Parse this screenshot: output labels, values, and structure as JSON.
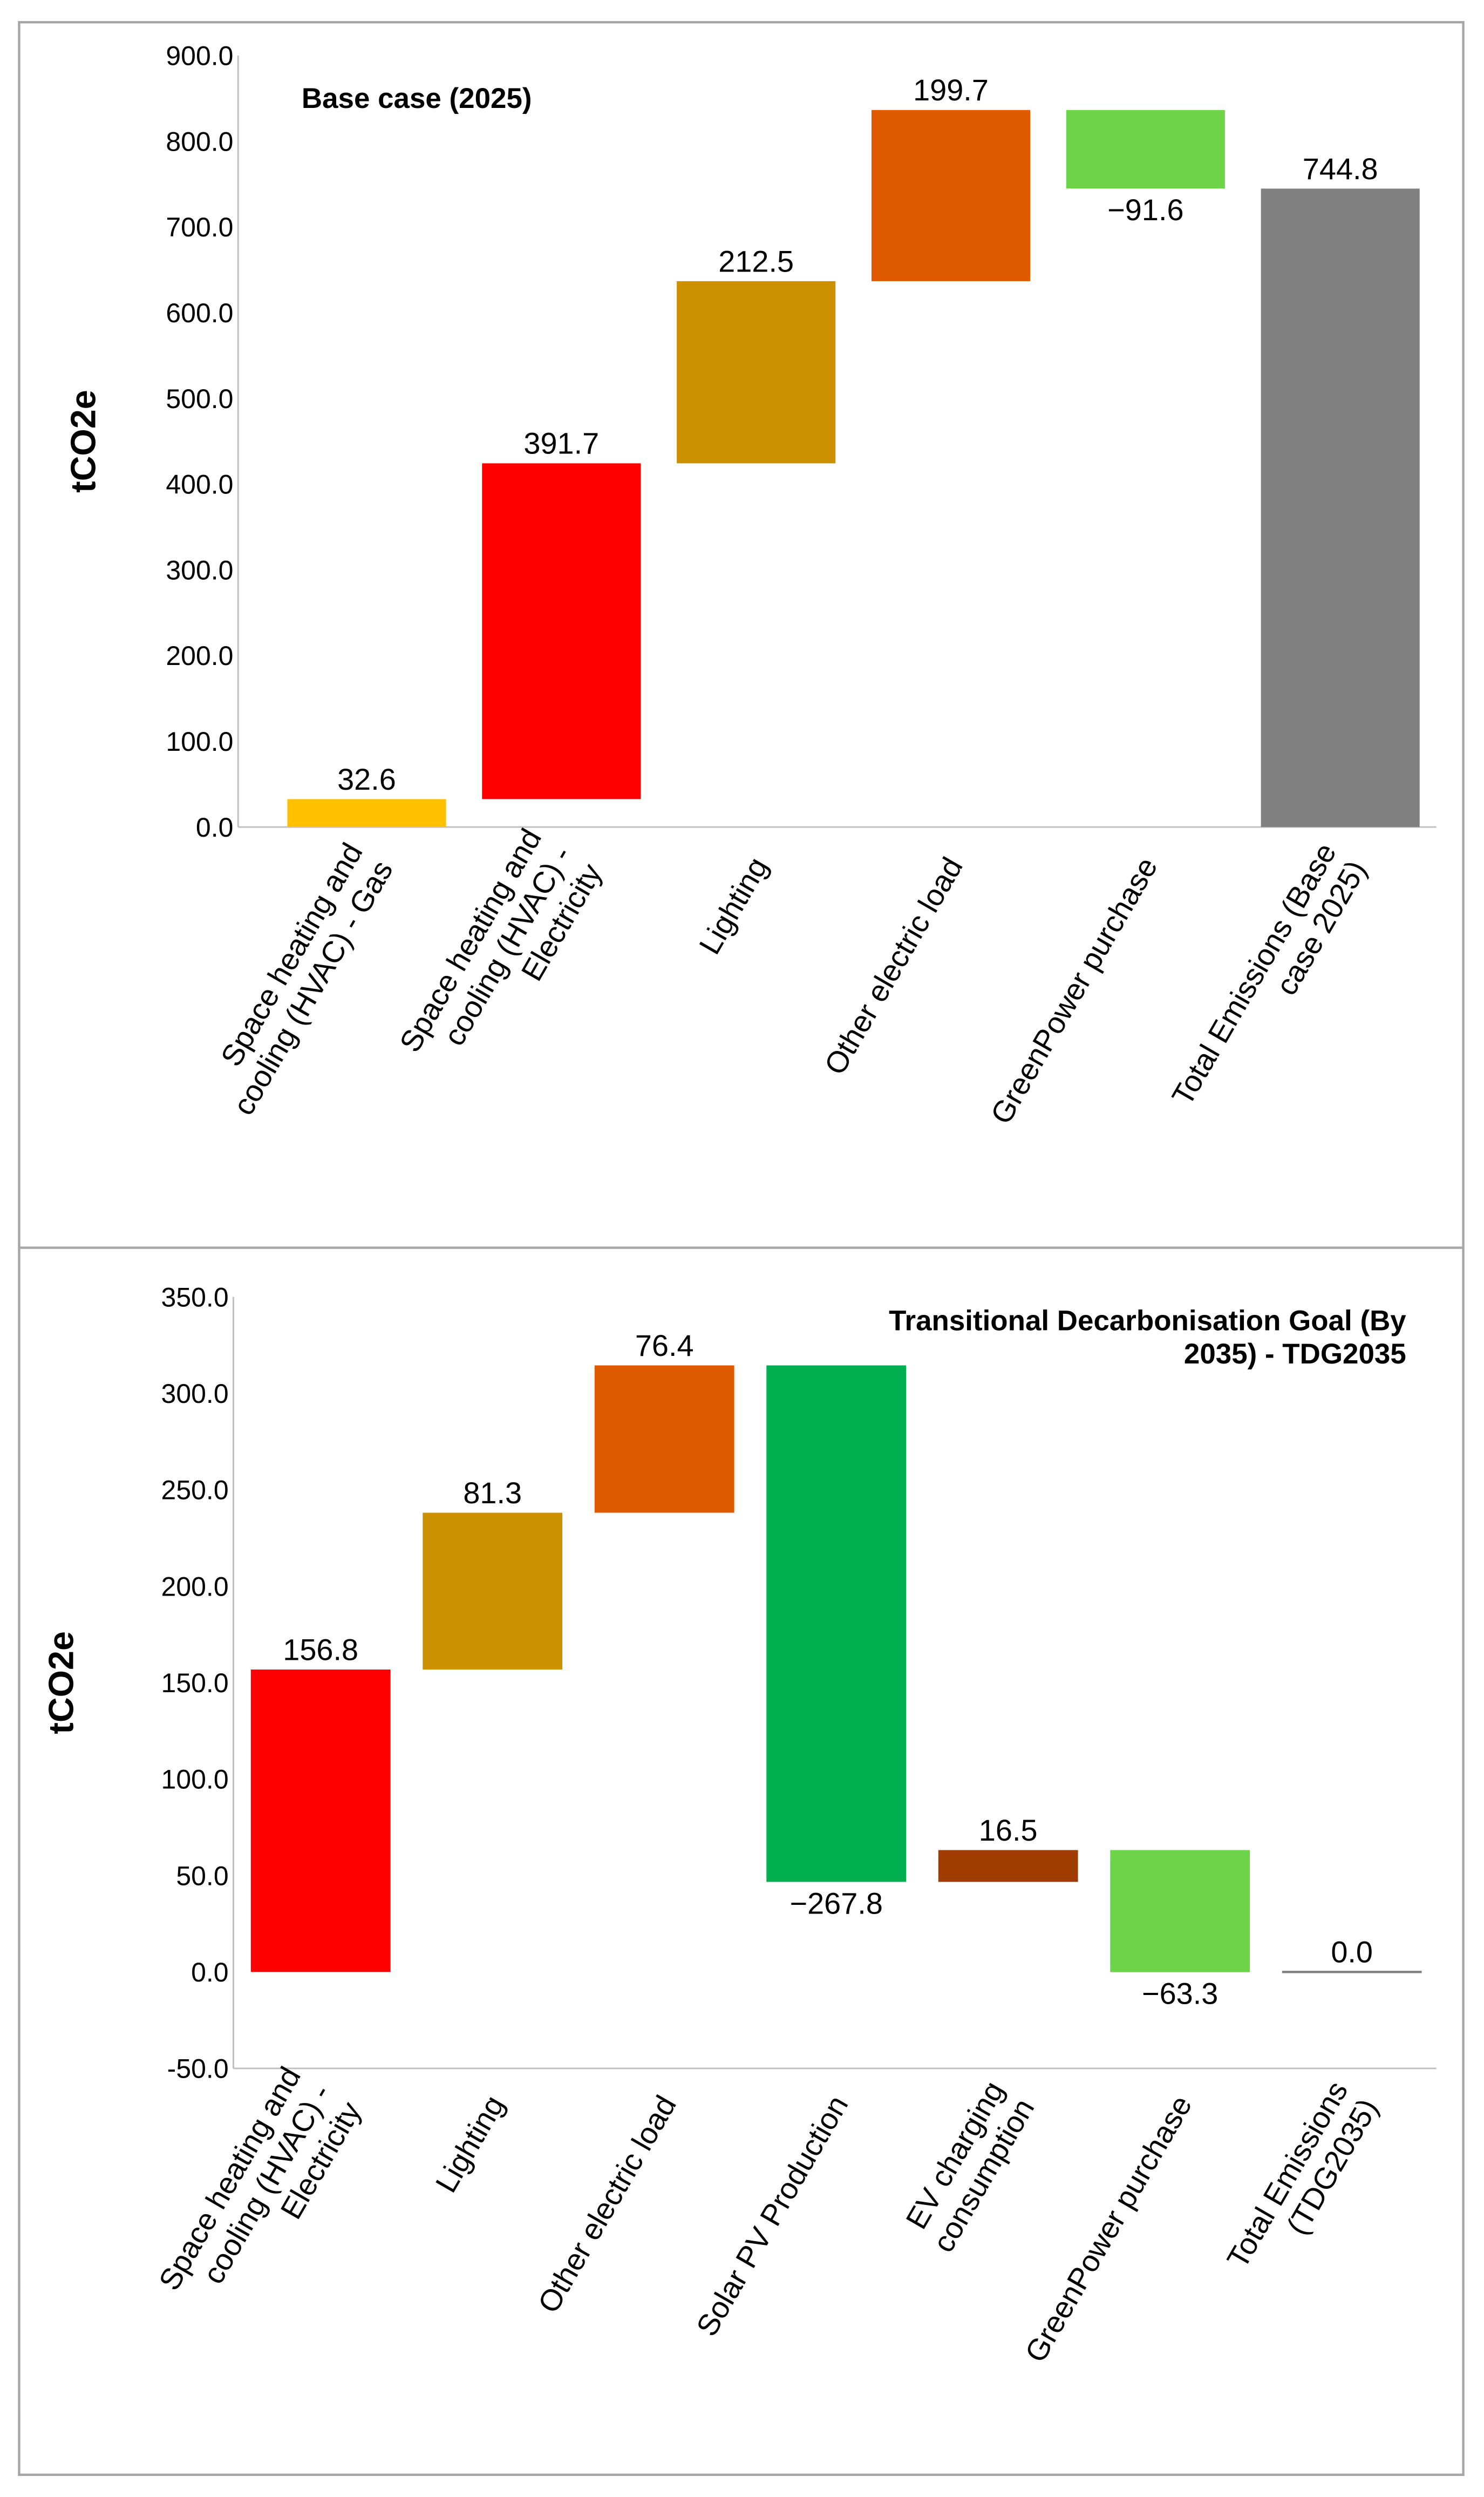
{
  "chart_data": [
    {
      "type": "waterfall",
      "title": "Base case (2025)",
      "ylabel": "tCO2e",
      "ylim": [
        0,
        900
      ],
      "yticks": [
        0,
        100,
        200,
        300,
        400,
        500,
        600,
        700,
        800,
        900
      ],
      "tick_labels": [
        "0.0",
        "100.0",
        "200.0",
        "300.0",
        "400.0",
        "500.0",
        "600.0",
        "700.0",
        "800.0",
        "900.0"
      ],
      "legend": "none",
      "title_position": "top-left",
      "categories": [
        "Space heating and cooling (HVAC) - Gas",
        "Space heating and cooling (HVAC) - Electricity",
        "Lighting",
        "Other electric load",
        "GreenPower purchase",
        "Total Emissions (Base case 2025)"
      ],
      "values": [
        32.6,
        391.7,
        212.5,
        199.7,
        -91.6,
        744.8
      ],
      "is_total": [
        false,
        false,
        false,
        false,
        false,
        true
      ],
      "data_labels": [
        "32.6",
        "391.7",
        "212.5",
        "199.7",
        "−91.6",
        "744.8"
      ],
      "colors": [
        "#FFC000",
        "#FF0000",
        "#CC9000",
        "#E05A00",
        "#6DD44A",
        "#808080"
      ]
    },
    {
      "type": "waterfall",
      "title": "Transitional Decarbonisation Goal (By 2035) - TDG2035",
      "ylabel": "tCO2e",
      "ylim": [
        -50,
        350
      ],
      "yticks": [
        -50,
        0,
        50,
        100,
        150,
        200,
        250,
        300,
        350
      ],
      "tick_labels": [
        "-50.0",
        "0.0",
        "50.0",
        "100.0",
        "150.0",
        "200.0",
        "250.0",
        "300.0",
        "350.0"
      ],
      "legend": "none",
      "title_position": "top-right",
      "categories": [
        "Space heating and cooling (HVAC) - Electricity",
        "Lighting",
        "Other electric load",
        "Solar PV Production",
        "EV charging consumption",
        "GreenPower purchase",
        "Total Emissions (TDG2035)"
      ],
      "values": [
        156.8,
        81.3,
        76.4,
        -267.8,
        16.5,
        -63.3,
        0.0
      ],
      "is_total": [
        false,
        false,
        false,
        false,
        false,
        false,
        true
      ],
      "data_labels": [
        "156.8",
        "81.3",
        "76.4",
        "−267.8",
        "16.5",
        "−63.3",
        "0.0"
      ],
      "colors": [
        "#FF0000",
        "#CC9000",
        "#E05A00",
        "#00B050",
        "#A03C00",
        "#6DD44A",
        "#808080"
      ]
    }
  ]
}
